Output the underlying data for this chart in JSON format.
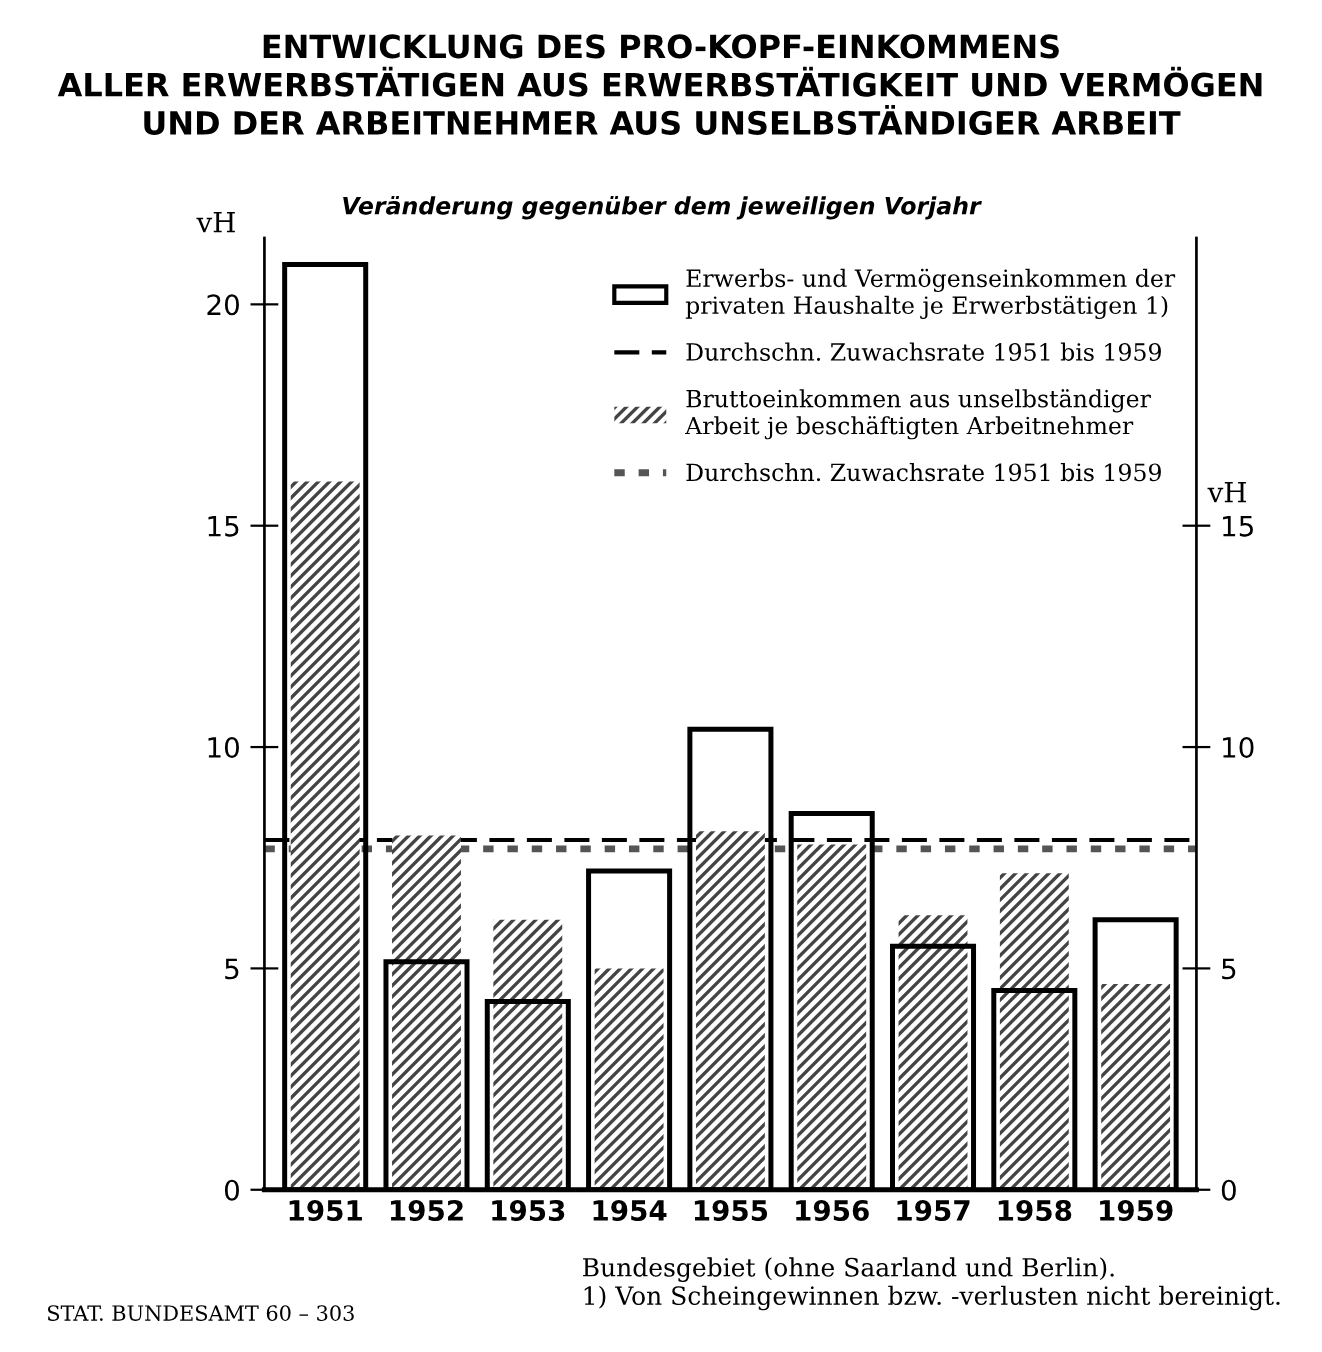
{
  "chart_data": {
    "type": "bar",
    "title": "ENTWICKLUNG DES PRO-KOPF-EINKOMMENS\nALLER ERWERBSTÄTIGEN AUS ERWERBSTÄTIGKEIT UND VERMÖGEN\nUND DER ARBEITNEHMER AUS UNSELBSTÄNDIGER ARBEIT",
    "subtitle": "Veränderung gegenüber dem jeweiligen Vorjahr",
    "ylabel": "vH",
    "y2label": "vH",
    "categories": [
      "1951",
      "1952",
      "1953",
      "1954",
      "1955",
      "1956",
      "1957",
      "1958",
      "1959"
    ],
    "series": [
      {
        "name": "Erwerbs- und Vermögenseinkommen der\nprivaten Haushalte je Erwerbstätigen 1)",
        "color": "#000000",
        "values": [
          20.9,
          5.15,
          4.25,
          7.2,
          10.4,
          8.5,
          5.5,
          4.5,
          6.1
        ]
      },
      {
        "name": "Bruttoeinkommen aus unselbständiger\nArbeit je beschäftigten Arbeitnehmer",
        "color": "#444444",
        "values": [
          16.0,
          8.0,
          6.1,
          5.0,
          8.1,
          7.8,
          6.2,
          7.15,
          4.65
        ]
      }
    ],
    "ref_lines": [
      {
        "axis": "y",
        "value": 7.9,
        "label": "Durchschn. Zuwachsrate 1951 bis 1959",
        "color": "#000000",
        "line_style": "dashed"
      },
      {
        "axis": "y",
        "value": 7.7,
        "label": "Durchschn. Zuwachsrate 1951 bis 1959",
        "color": "#555555",
        "line_style": "dotted"
      }
    ],
    "ylim": [
      0,
      21.5
    ],
    "yticks": [
      0,
      5,
      10,
      15,
      20
    ],
    "y2lim": [
      0,
      21.5
    ],
    "y2ticks": [
      0,
      5,
      10,
      15
    ],
    "legend": "top right",
    "annotations": [
      "Bundesgebiet (ohne Saarland und Berlin).\n1) Von Scheingewinnen bzw. -verlusten nicht bereinigt.",
      "STAT. BUNDESAMT 60 – 303"
    ]
  }
}
